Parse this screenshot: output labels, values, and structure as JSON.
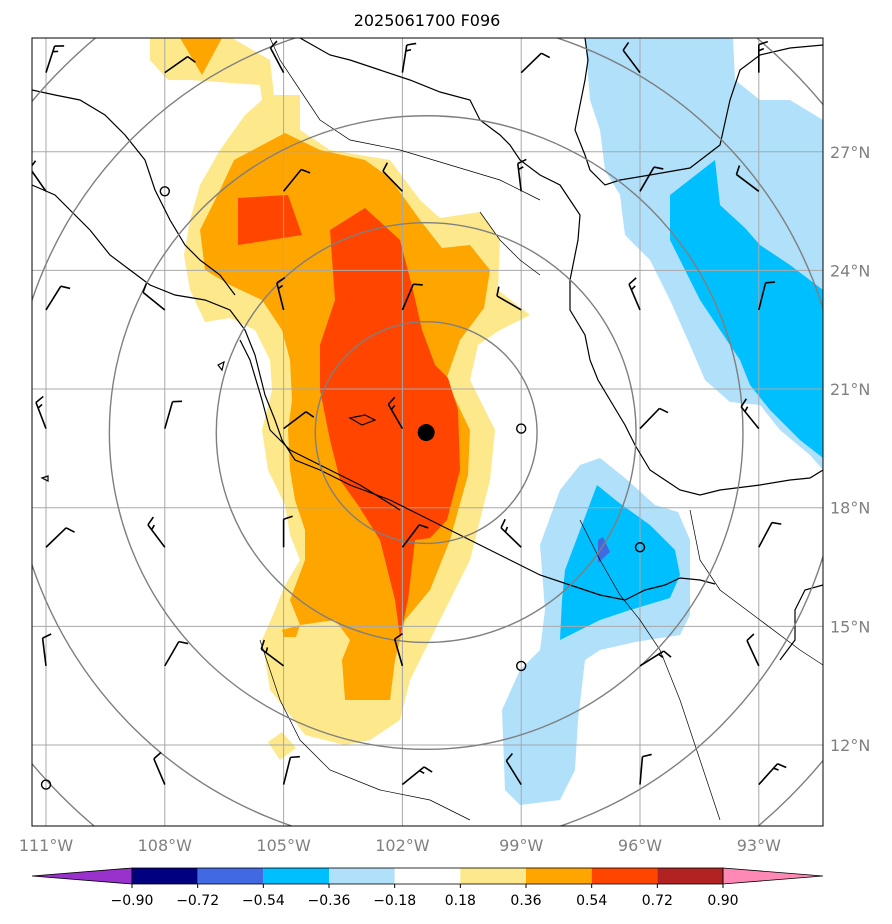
{
  "title": "2025061700 F096",
  "map": {
    "lon_range": [
      -111.5,
      -91.5
    ],
    "lat_range": [
      10,
      30
    ],
    "lon_ticks": [
      {
        "value": -111,
        "label": "111°W"
      },
      {
        "value": -108,
        "label": "108°W"
      },
      {
        "value": -105,
        "label": "105°W"
      },
      {
        "value": -102,
        "label": "102°W"
      },
      {
        "value": -99,
        "label": "99°W"
      },
      {
        "value": -96,
        "label": "96°W"
      },
      {
        "value": -93,
        "label": "93°W"
      }
    ],
    "lat_ticks": [
      {
        "value": 12,
        "label": "12°N"
      },
      {
        "value": 15,
        "label": "15°N"
      },
      {
        "value": 18,
        "label": "18°N"
      },
      {
        "value": 21,
        "label": "21°N"
      },
      {
        "value": 24,
        "label": "24°N"
      },
      {
        "value": 27,
        "label": "27°N"
      }
    ],
    "gridlines": true,
    "center_marker": {
      "lon": -101.4,
      "lat": 19.9
    },
    "range_ring_radii_deg": [
      2.8,
      5.3,
      8.0,
      10.5,
      13.0
    ],
    "colors": {
      "positive_0.18_0.36": "#fde98b",
      "positive_0.36_0.54": "#ffa500",
      "positive_0.54_0.72": "#ff4500",
      "negative_-0.36_-0.18": "#b0e0fa",
      "negative_-0.54_-0.36": "#00bfff",
      "negative_-0.72_-0.54": "#4169e1"
    }
  },
  "colorbar": {
    "levels": [
      "−0.90",
      "−0.72",
      "−0.54",
      "−0.36",
      "−0.18",
      "0.18",
      "0.36",
      "0.54",
      "0.72",
      "0.90"
    ],
    "colors": [
      "#9932cc",
      "#000080",
      "#4169e1",
      "#00bfff",
      "#b0e0fa",
      "#ffffff",
      "#fde98b",
      "#ffa500",
      "#ff4500",
      "#b22222",
      "#ff88b4"
    ],
    "extend": "both"
  }
}
